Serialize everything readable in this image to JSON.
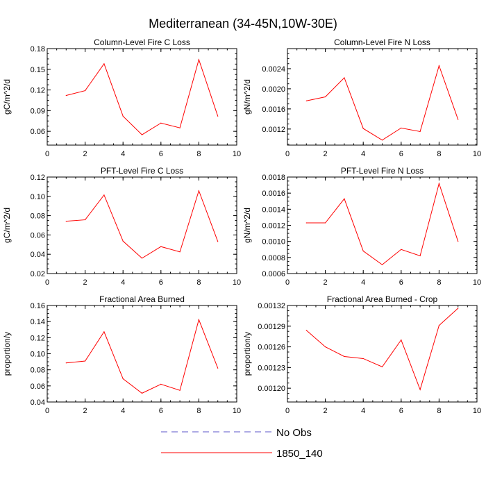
{
  "figure": {
    "title": "Mediterranean (34-45N,10W-30E)"
  },
  "colors": {
    "series_line": "#ff0000",
    "obs_line": "#5b55c8",
    "axes": "#000000",
    "background": "#ffffff"
  },
  "chart_data": [
    {
      "type": "line",
      "title": "Column-Level Fire C Loss",
      "xlabel": "",
      "ylabel": "gC/m^2/d",
      "xlim": [
        0,
        10
      ],
      "ylim": [
        0.04,
        0.18
      ],
      "xticks": [
        0,
        2,
        4,
        6,
        8,
        10
      ],
      "xtick_labels": [
        "0",
        "2",
        "4",
        "6",
        "8",
        "10"
      ],
      "yticks": [
        0.06,
        0.09,
        0.12,
        0.15,
        0.18
      ],
      "ytick_labels": [
        "0.06",
        "0.09",
        "0.12",
        "0.15",
        "0.18"
      ],
      "series": [
        {
          "name": "1850_140",
          "x": [
            1,
            2,
            3,
            4,
            5,
            6,
            7,
            8,
            9
          ],
          "values": [
            0.112,
            0.119,
            0.158,
            0.082,
            0.055,
            0.072,
            0.065,
            0.164,
            0.082
          ]
        }
      ]
    },
    {
      "type": "line",
      "title": "Column-Level Fire N Loss",
      "xlabel": "",
      "ylabel": "gN/m^2/d",
      "xlim": [
        0,
        10
      ],
      "ylim": [
        0.00088,
        0.0028
      ],
      "xticks": [
        0,
        2,
        4,
        6,
        8,
        10
      ],
      "xtick_labels": [
        "0",
        "2",
        "4",
        "6",
        "8",
        "10"
      ],
      "yticks": [
        0.0012,
        0.0016,
        0.002,
        0.0024
      ],
      "ytick_labels": [
        "0.0012",
        "0.0016",
        "0.0020",
        "0.0024"
      ],
      "series": [
        {
          "name": "1850_140",
          "x": [
            1,
            2,
            3,
            4,
            5,
            6,
            7,
            8,
            9
          ],
          "values": [
            0.00176,
            0.00184,
            0.00222,
            0.00121,
            0.00098,
            0.00122,
            0.00115,
            0.00246,
            0.00139
          ]
        }
      ]
    },
    {
      "type": "line",
      "title": "PFT-Level Fire C Loss",
      "xlabel": "",
      "ylabel": "gC/m^2/d",
      "xlim": [
        0,
        10
      ],
      "ylim": [
        0.02,
        0.12
      ],
      "xticks": [
        0,
        2,
        4,
        6,
        8,
        10
      ],
      "xtick_labels": [
        "0",
        "2",
        "4",
        "6",
        "8",
        "10"
      ],
      "yticks": [
        0.02,
        0.04,
        0.06,
        0.08,
        0.1,
        0.12
      ],
      "ytick_labels": [
        "0.02",
        "0.04",
        "0.06",
        "0.08",
        "0.10",
        "0.12"
      ],
      "series": [
        {
          "name": "1850_140",
          "x": [
            1,
            2,
            3,
            4,
            5,
            6,
            7,
            8,
            9
          ],
          "values": [
            0.0742,
            0.0757,
            0.1014,
            0.0536,
            0.0359,
            0.0479,
            0.0425,
            0.1058,
            0.0532
          ]
        }
      ]
    },
    {
      "type": "line",
      "title": "PFT-Level Fire N Loss",
      "xlabel": "",
      "ylabel": "gN/m^2/d",
      "xlim": [
        0,
        10
      ],
      "ylim": [
        0.0006,
        0.0018
      ],
      "xticks": [
        0,
        2,
        4,
        6,
        8,
        10
      ],
      "xtick_labels": [
        "0",
        "2",
        "4",
        "6",
        "8",
        "10"
      ],
      "yticks": [
        0.0006,
        0.0008,
        0.001,
        0.0012,
        0.0014,
        0.0016,
        0.0018
      ],
      "ytick_labels": [
        "0.0006",
        "0.0008",
        "0.0010",
        "0.0012",
        "0.0014",
        "0.0016",
        "0.0018"
      ],
      "series": [
        {
          "name": "1850_140",
          "x": [
            1,
            2,
            3,
            4,
            5,
            6,
            7,
            8,
            9
          ],
          "values": [
            0.00123,
            0.00123,
            0.00153,
            0.00088,
            0.00071,
            0.0009,
            0.00082,
            0.00172,
            0.001
          ]
        }
      ]
    },
    {
      "type": "line",
      "title": "Fractional Area Burned",
      "xlabel": "",
      "ylabel": "proportion/y",
      "xlim": [
        0,
        10
      ],
      "ylim": [
        0.04,
        0.16
      ],
      "xticks": [
        0,
        2,
        4,
        6,
        8,
        10
      ],
      "xtick_labels": [
        "0",
        "2",
        "4",
        "6",
        "8",
        "10"
      ],
      "yticks": [
        0.04,
        0.06,
        0.08,
        0.1,
        0.12,
        0.14,
        0.16
      ],
      "ytick_labels": [
        "0.04",
        "0.06",
        "0.08",
        "0.10",
        "0.12",
        "0.14",
        "0.16"
      ],
      "series": [
        {
          "name": "1850_140",
          "x": [
            1,
            2,
            3,
            4,
            5,
            6,
            7,
            8,
            9
          ],
          "values": [
            0.0886,
            0.0909,
            0.1273,
            0.0689,
            0.0509,
            0.0621,
            0.0545,
            0.1424,
            0.0821
          ]
        }
      ]
    },
    {
      "type": "line",
      "title": "Fractional Area Burned - Crop",
      "xlabel": "",
      "ylabel": "proportion/y",
      "xlim": [
        0,
        10
      ],
      "ylim": [
        0.00118,
        0.00132
      ],
      "xticks": [
        0,
        2,
        4,
        6,
        8,
        10
      ],
      "xtick_labels": [
        "0",
        "2",
        "4",
        "6",
        "8",
        "10"
      ],
      "yticks": [
        0.0012,
        0.00123,
        0.00126,
        0.00129,
        0.00132
      ],
      "ytick_labels": [
        "0.00120",
        "0.00123",
        "0.00126",
        "0.00129",
        "0.00132"
      ],
      "series": [
        {
          "name": "1850_140",
          "x": [
            1,
            2,
            3,
            4,
            5,
            6,
            7,
            8,
            9
          ],
          "values": [
            0.001284,
            0.00126,
            0.001246,
            0.001243,
            0.001231,
            0.00127,
            0.001198,
            0.001291,
            0.001316
          ]
        }
      ]
    }
  ],
  "legend": {
    "items": [
      {
        "label": "No Obs",
        "style": "dashed"
      },
      {
        "label": "1850_140",
        "style": "solid"
      }
    ]
  }
}
